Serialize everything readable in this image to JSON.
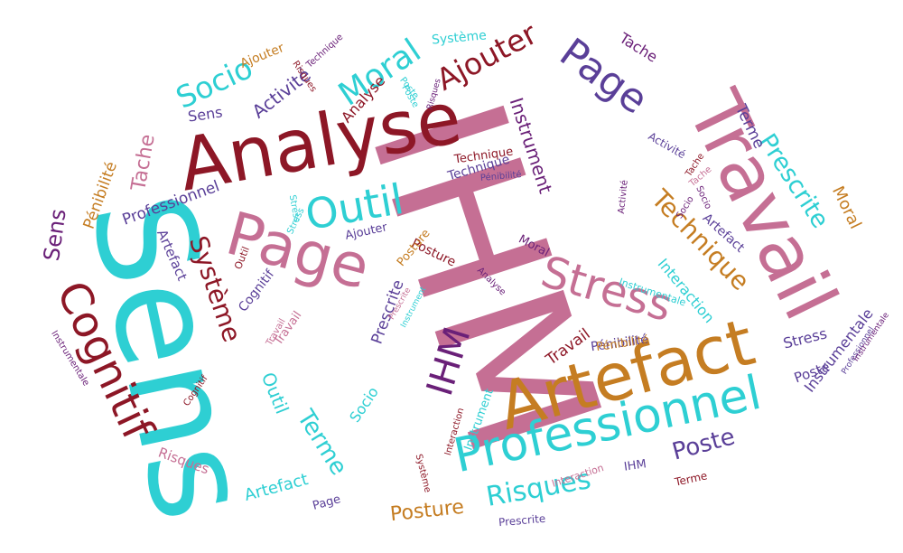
{
  "palette": {
    "pink": "#c56f94",
    "cyan": "#2ecfd3",
    "crimson": "#8d1726",
    "orange": "#c57d22",
    "purple": "#5a3f98",
    "violet": "#6a2078"
  },
  "words": [
    {
      "text": "IHM",
      "color": "pink"
    },
    {
      "text": "Sens",
      "color": "cyan"
    },
    {
      "text": "Analyse",
      "color": "crimson"
    },
    {
      "text": "Travail",
      "color": "pink"
    },
    {
      "text": "Artefact",
      "color": "orange"
    },
    {
      "text": "Page",
      "color": "pink"
    },
    {
      "text": "Professionnel",
      "color": "cyan"
    },
    {
      "text": "Stress",
      "color": "pink"
    },
    {
      "text": "Cognitif",
      "color": "crimson"
    },
    {
      "text": "Outil",
      "color": "cyan"
    },
    {
      "text": "Page",
      "color": "purple"
    },
    {
      "text": "Ajouter",
      "color": "crimson"
    },
    {
      "text": "Moral",
      "color": "cyan"
    },
    {
      "text": "Socio",
      "color": "cyan"
    },
    {
      "text": "Risques",
      "color": "cyan"
    },
    {
      "text": "Technique",
      "color": "orange"
    },
    {
      "text": "IHM",
      "color": "violet"
    },
    {
      "text": "Prescrite",
      "color": "cyan"
    },
    {
      "text": "Système",
      "color": "crimson"
    },
    {
      "text": "Terme",
      "color": "cyan"
    },
    {
      "text": "Poste",
      "color": "purple"
    },
    {
      "text": "Posture",
      "color": "orange"
    },
    {
      "text": "Instrument",
      "color": "violet"
    },
    {
      "text": "Activité",
      "color": "purple"
    },
    {
      "text": "Sens",
      "color": "violet"
    },
    {
      "text": "Tache",
      "color": "pink"
    },
    {
      "text": "Pénibilité",
      "color": "orange"
    },
    {
      "text": "Moral",
      "color": "orange"
    },
    {
      "text": "Interaction",
      "color": "cyan"
    },
    {
      "text": "Outil",
      "color": "cyan"
    },
    {
      "text": "Travail",
      "color": "crimson"
    },
    {
      "text": "Prescrite",
      "color": "purple"
    },
    {
      "text": "Artefact",
      "color": "cyan"
    },
    {
      "text": "Socio",
      "color": "cyan"
    },
    {
      "text": "Terme",
      "color": "purple"
    },
    {
      "text": "Tache",
      "color": "violet"
    },
    {
      "text": "Professionnel",
      "color": "purple"
    },
    {
      "text": "Artefact",
      "color": "purple"
    },
    {
      "text": "Analyse",
      "color": "crimson"
    },
    {
      "text": "Sens",
      "color": "purple"
    },
    {
      "text": "Instrumentale",
      "color": "purple"
    },
    {
      "text": "Stress",
      "color": "purple"
    },
    {
      "text": "Poste",
      "color": "purple"
    },
    {
      "text": "Risques",
      "color": "pink"
    },
    {
      "text": "Cognitif",
      "color": "purple"
    },
    {
      "text": "Pénibilité",
      "color": "purple"
    },
    {
      "text": "Technique",
      "color": "purple"
    },
    {
      "text": "Posture",
      "color": "crimson"
    },
    {
      "text": "Posture",
      "color": "orange"
    },
    {
      "text": "Ajouter",
      "color": "orange"
    },
    {
      "text": "Ajouter",
      "color": "purple"
    },
    {
      "text": "Système",
      "color": "cyan"
    },
    {
      "text": "Technique",
      "color": "violet"
    },
    {
      "text": "Risques",
      "color": "crimson"
    },
    {
      "text": "Poste",
      "color": "cyan"
    },
    {
      "text": "Tache",
      "color": "crimson"
    },
    {
      "text": "Terme",
      "color": "crimson"
    },
    {
      "text": "Prescrite",
      "color": "purple"
    },
    {
      "text": "Interaction",
      "color": "pink"
    },
    {
      "text": "IHM",
      "color": "purple"
    },
    {
      "text": "Page",
      "color": "purple"
    },
    {
      "text": "Analyse",
      "color": "violet"
    },
    {
      "text": "Moral",
      "color": "violet"
    },
    {
      "text": "Instrumentale",
      "color": "cyan"
    },
    {
      "text": "Outil",
      "color": "crimson"
    },
    {
      "text": "Artefact",
      "color": "purple"
    },
    {
      "text": "Stress",
      "color": "cyan"
    },
    {
      "text": "Travail",
      "color": "pink"
    },
    {
      "text": "Cognitif",
      "color": "crimson"
    },
    {
      "text": "Socio",
      "color": "violet"
    },
    {
      "text": "Activité",
      "color": "violet"
    },
    {
      "text": "Activité",
      "color": "purple"
    },
    {
      "text": "Tache",
      "color": "pink"
    },
    {
      "text": "Socio",
      "color": "violet"
    },
    {
      "text": "Pénibilité",
      "color": "purple"
    },
    {
      "text": "Instrumentale",
      "color": "violet"
    },
    {
      "text": "Professionnel",
      "color": "purple"
    },
    {
      "text": "Risques",
      "color": "violet"
    },
    {
      "text": "Instrument",
      "color": "cyan"
    },
    {
      "text": "Instrument",
      "color": "cyan"
    },
    {
      "text": "Interaction",
      "color": "crimson"
    },
    {
      "text": "Système",
      "color": "crimson"
    },
    {
      "text": "Poste",
      "color": "cyan"
    },
    {
      "text": "Technique",
      "color": "crimson"
    },
    {
      "text": "Prescrite",
      "color": "pink"
    },
    {
      "text": "Stress",
      "color": "cyan"
    },
    {
      "text": "Travail",
      "color": "pink"
    },
    {
      "text": "Pénibilité",
      "color": "orange"
    },
    {
      "text": "Instrumentale",
      "color": "violet"
    }
  ]
}
